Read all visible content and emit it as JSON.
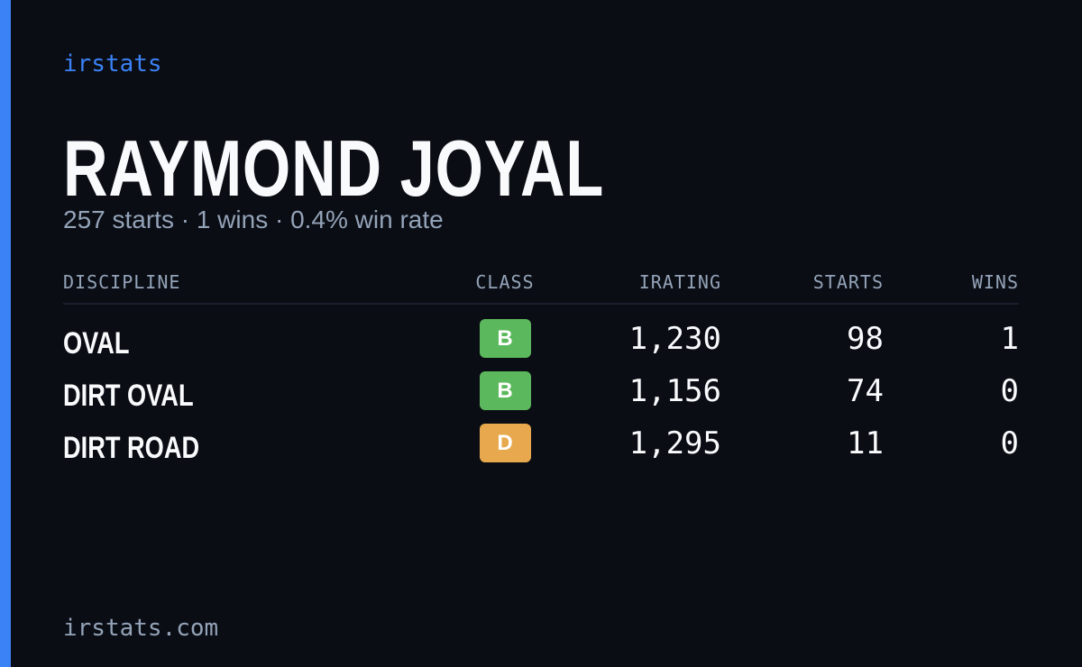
{
  "brand": "irstats",
  "driver": {
    "name": "RAYMOND JOYAL",
    "summary": "257 starts · 1 wins · 0.4% win rate"
  },
  "table": {
    "headers": [
      "DISCIPLINE",
      "CLASS",
      "IRATING",
      "STARTS",
      "WINS"
    ],
    "rows": [
      [
        "OVAL",
        "B",
        "1,230",
        "98",
        "1"
      ],
      [
        "DIRT OVAL",
        "B",
        "1,156",
        "74",
        "0"
      ],
      [
        "DIRT ROAD",
        "D",
        "1,295",
        "11",
        "0"
      ]
    ],
    "class_colors": [
      "#5cb85c",
      "#5cb85c",
      "#e8a94e"
    ]
  },
  "footer": "irstats.com"
}
